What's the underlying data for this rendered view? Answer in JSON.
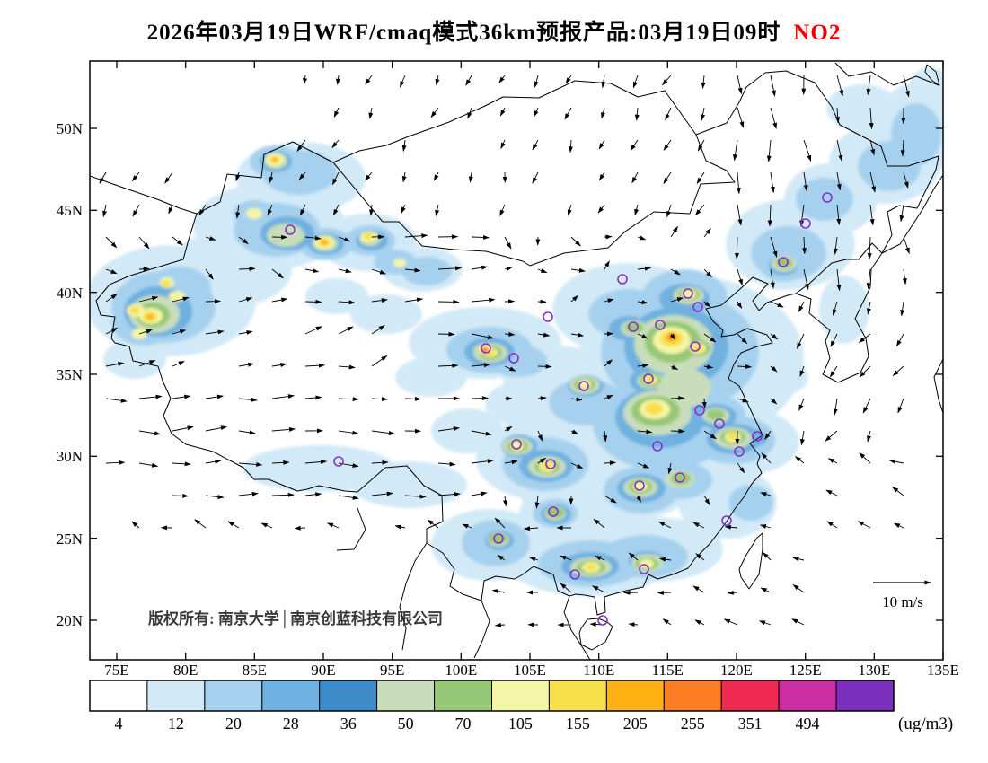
{
  "title": {
    "text": "2026年03月19日WRF/cmaq模式36km预报产品:03月19日09时",
    "pollutant": "NO2",
    "pollutant_color": "#f20000"
  },
  "map": {
    "lat_labels": [
      "50N",
      "45N",
      "40N",
      "35N",
      "30N",
      "25N",
      "20N"
    ],
    "lon_labels": [
      "75E",
      "80E",
      "85E",
      "90E",
      "95E",
      "100E",
      "105E",
      "110E",
      "115E",
      "120E",
      "125E",
      "130E",
      "135E"
    ],
    "copyright": "版权所有: 南京大学│南京创蓝科技有限公司",
    "wind_reference": "10 m/s"
  },
  "colorbar": {
    "values": [
      "4",
      "12",
      "20",
      "28",
      "36",
      "50",
      "70",
      "105",
      "155",
      "205",
      "255",
      "351",
      "494"
    ],
    "unit": "(ug/m3)",
    "colors": [
      "#ffffff",
      "#d2e9f7",
      "#a6d1ee",
      "#6fb1e0",
      "#3d8bc9",
      "#c8ddba",
      "#97c877",
      "#f5f5a6",
      "#f7e04b",
      "#ffb116",
      "#fd7d23",
      "#ef2a52",
      "#cc2fa3",
      "#7b2fbf"
    ]
  }
}
